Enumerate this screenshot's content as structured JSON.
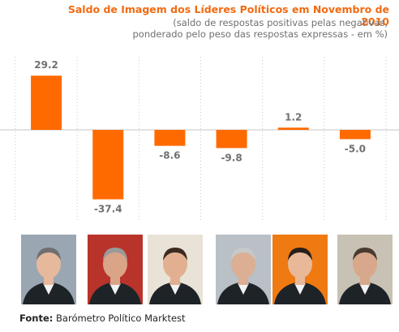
{
  "header": {
    "title": "Saldo de Imagem dos Líderes Políticos em Novembro de 2010",
    "subtitle_line1": "(saldo de respostas positivas pelas negativas,",
    "subtitle_line2": "ponderado pelo peso das respostas expressas - em %)"
  },
  "chart_data": {
    "type": "bar",
    "title": "Saldo de Imagem dos Líderes Políticos em Novembro de 2010",
    "xlabel": "",
    "ylabel": "",
    "categories": [
      "",
      "",
      "",
      "",
      "",
      ""
    ],
    "values": [
      29.2,
      -37.4,
      -8.6,
      -9.8,
      1.2,
      -5.0
    ],
    "value_labels": [
      "29.2",
      "-37.4",
      "-8.6",
      "-9.8",
      "1.2",
      "-5.0"
    ],
    "ylim": [
      -40,
      32
    ],
    "grid": "vertical dotted separators",
    "bar_color": "#ff6a00",
    "label_color": "#707070"
  },
  "portraits": [
    {
      "icon": "portrait-1-icon",
      "bg": "#9aa7b3"
    },
    {
      "icon": "portrait-2-icon",
      "bg": "#b8332a"
    },
    {
      "icon": "portrait-3-icon",
      "bg": "#e9e2d6"
    },
    {
      "icon": "portrait-4-icon",
      "bg": "#b9c0c6"
    },
    {
      "icon": "portrait-5-icon",
      "bg": "#f07a12"
    },
    {
      "icon": "portrait-6-icon",
      "bg": "#c8c2b4"
    }
  ],
  "footer": {
    "source_label": "Fonte:",
    "source_text": "Barómetro Político Marktest"
  }
}
